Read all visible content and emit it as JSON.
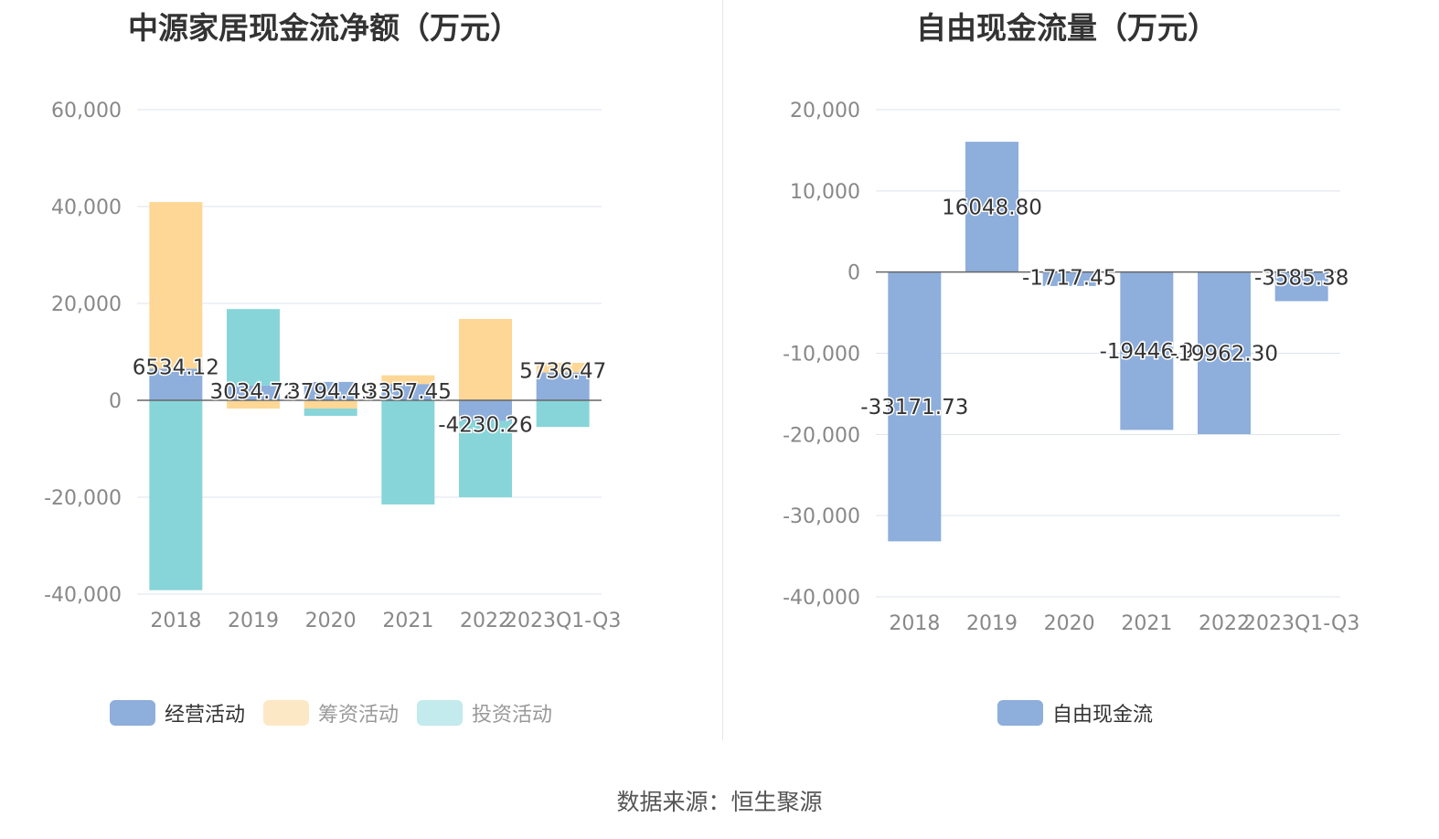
{
  "footer": {
    "source": "数据来源：恒生聚源"
  },
  "colors": {
    "operating": "#8eaedb",
    "financing": "#fed797",
    "investing": "#87d5d9",
    "fcf": "#8eaedb"
  },
  "chart_data": [
    {
      "type": "bar",
      "stacked": true,
      "title": "中源家居现金流净额（万元）",
      "categories": [
        "2018",
        "2019",
        "2020",
        "2021",
        "2022",
        "2023Q1-Q3"
      ],
      "yticks": [
        "60,000",
        "40,000",
        "20,000",
        "0",
        "-20,000",
        "-40,000"
      ],
      "ylim": [
        -40000,
        60000
      ],
      "series": [
        {
          "name": "经营活动",
          "values": [
            6534.12,
            3034.72,
            3794.49,
            3357.45,
            -4230.26,
            5736.47
          ],
          "labels": [
            "6534.12",
            "3034.72",
            "3794.49",
            "3357.45",
            "-4230.26",
            "5736.47"
          ]
        },
        {
          "name": "筹资活动",
          "values": [
            34400,
            -1700,
            -1700,
            1800,
            16800,
            2000
          ]
        },
        {
          "name": "投资活动",
          "values": [
            -39200,
            15800,
            -1500,
            -21500,
            -15800,
            -5500
          ]
        }
      ],
      "legend_position": "bottom"
    },
    {
      "type": "bar",
      "title": "自由现金流量（万元）",
      "categories": [
        "2018",
        "2019",
        "2020",
        "2021",
        "2022",
        "2023Q1-Q3"
      ],
      "yticks": [
        "20,000",
        "10,000",
        "0",
        "-10,000",
        "-20,000",
        "-30,000",
        "-40,000"
      ],
      "ylim": [
        -40000,
        20000
      ],
      "series": [
        {
          "name": "自由现金流",
          "values": [
            -33171.73,
            16048.8,
            -1717.45,
            -19446.9,
            -19962.3,
            -3585.38
          ],
          "labels": [
            "-33171.73",
            "16048.80",
            "-1717.45",
            "-19446.9",
            "-19962.30",
            "-3585.38"
          ]
        }
      ],
      "legend_position": "bottom"
    }
  ]
}
